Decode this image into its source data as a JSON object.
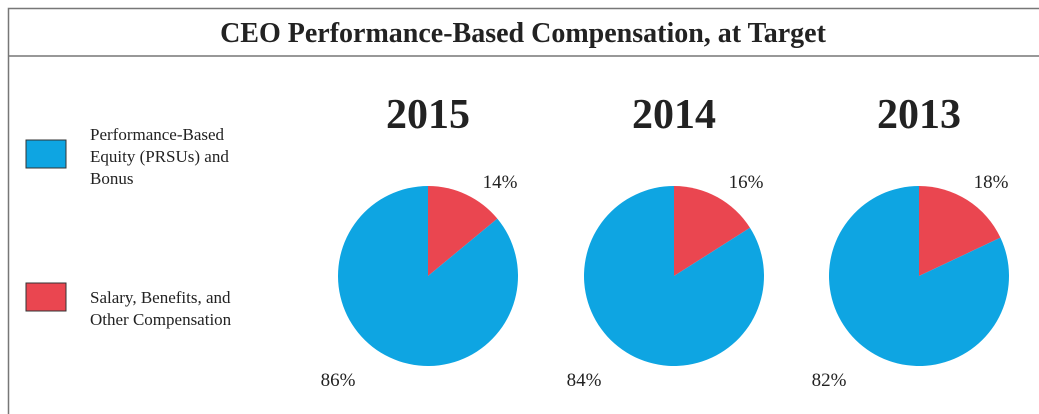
{
  "title": "CEO Performance-Based Compensation, at Target",
  "legend": [
    {
      "name": "Performance-Based Equity (PRSUs) and Bonus",
      "color": "#0ea5e2"
    },
    {
      "name": "Salary, Benefits, and Other Compensation",
      "color": "#ea4650"
    }
  ],
  "chart_data": [
    {
      "type": "pie",
      "title": "2015",
      "values": [
        86,
        14
      ],
      "value_labels": [
        "86%",
        "14%"
      ]
    },
    {
      "type": "pie",
      "title": "2014",
      "values": [
        84,
        16
      ],
      "value_labels": [
        "84%",
        "16%"
      ]
    },
    {
      "type": "pie",
      "title": "2013",
      "values": [
        82,
        18
      ],
      "value_labels": [
        "82%",
        "18%"
      ]
    }
  ]
}
